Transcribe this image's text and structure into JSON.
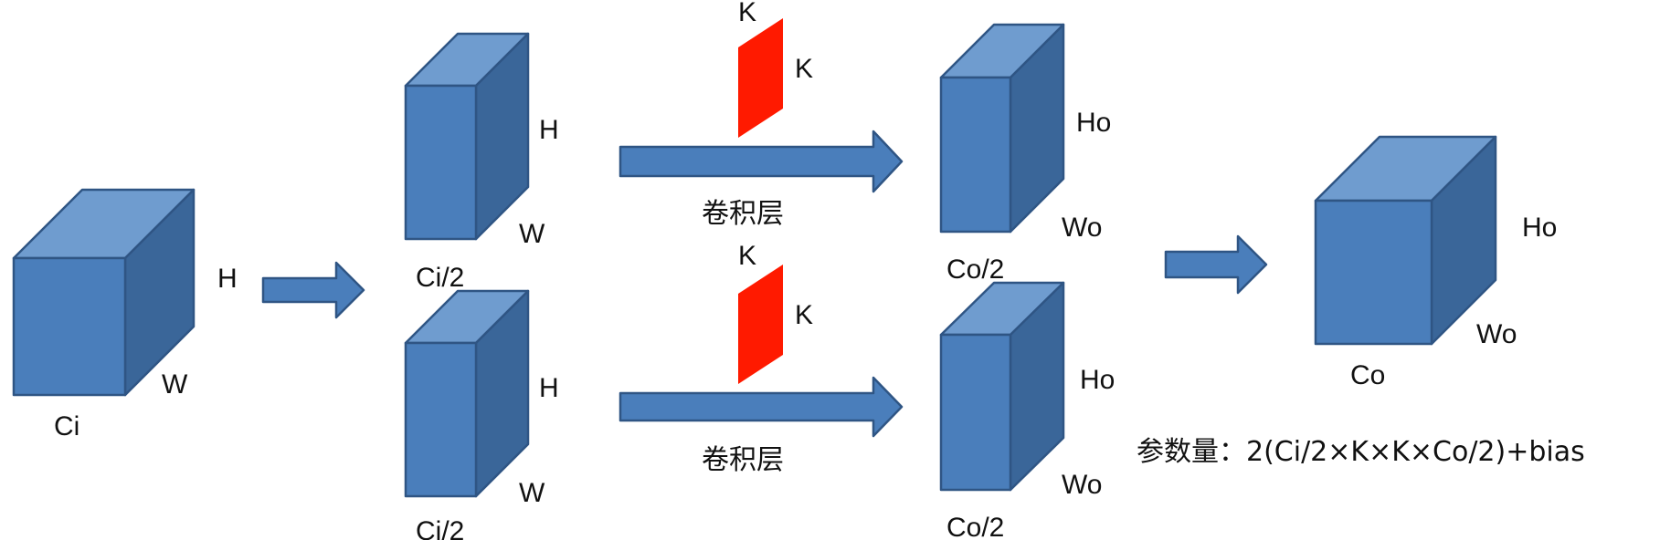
{
  "colors": {
    "cube_front": "#4a7ebb",
    "cube_top": "#6f9ccf",
    "cube_side": "#3a6699",
    "cube_stroke": "#2f5584",
    "kernel": "#ff1a00",
    "arrow_fill": "#4a7ebb",
    "arrow_stroke": "#2f5584"
  },
  "input": {
    "channels": "Ci",
    "height": "H",
    "width": "W"
  },
  "groups": [
    {
      "in_channels": "Ci/2",
      "in_height": "H",
      "in_width": "W",
      "kernel_h": "K",
      "kernel_w": "K",
      "layer_label": "卷积层",
      "out_channels": "Co/2",
      "out_height": "Ho",
      "out_width": "Wo"
    },
    {
      "in_channels": "Ci/2",
      "in_height": "H",
      "in_width": "W",
      "kernel_h": "K",
      "kernel_w": "K",
      "layer_label": "卷积层",
      "out_channels": "Co/2",
      "out_height": "Ho",
      "out_width": "Wo"
    }
  ],
  "output": {
    "channels": "Co",
    "height": "Ho",
    "width": "Wo"
  },
  "formula": "参数量：2(Ci/2×K×K×Co/2)+bias"
}
